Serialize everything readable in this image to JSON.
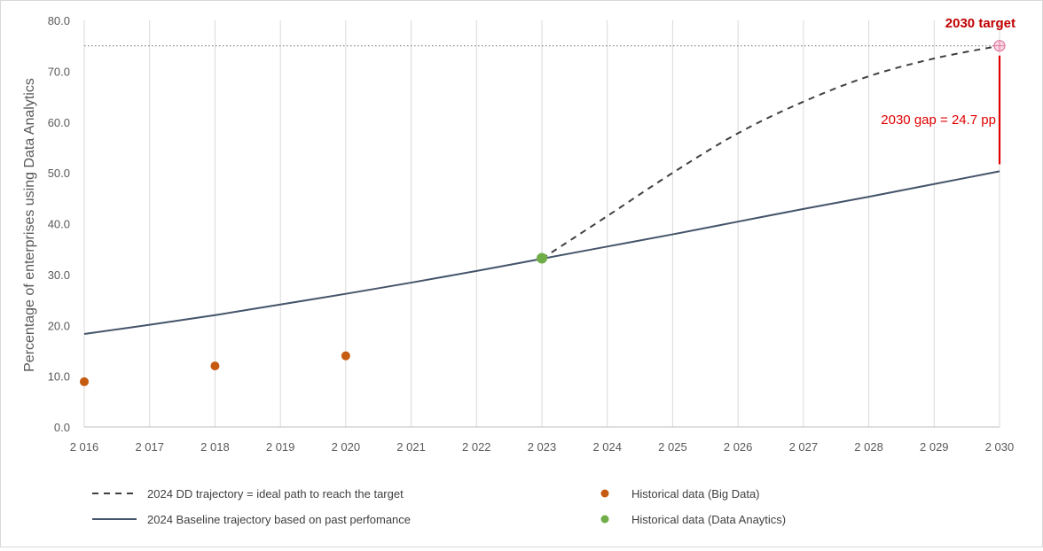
{
  "chart_data": {
    "type": "line",
    "title": "",
    "xlabel": "",
    "ylabel": "Percentage of enterprises using Data Analytics",
    "ylim": [
      0,
      80
    ],
    "xlim": [
      2016,
      2030
    ],
    "grid": "vertical",
    "x_tick_labels": [
      "2 016",
      "2 017",
      "2 018",
      "2 019",
      "2 020",
      "2 021",
      "2 022",
      "2 023",
      "2 024",
      "2 025",
      "2 026",
      "2 027",
      "2 028",
      "2 029",
      "2 030"
    ],
    "y_tick_labels": [
      "0.0",
      "10.0",
      "20.0",
      "30.0",
      "40.0",
      "50.0",
      "60.0",
      "70.0",
      "80.0"
    ],
    "x_ticks": [
      2016,
      2017,
      2018,
      2019,
      2020,
      2021,
      2022,
      2023,
      2024,
      2025,
      2026,
      2027,
      2028,
      2029,
      2030
    ],
    "y_ticks": [
      0,
      10,
      20,
      30,
      40,
      50,
      60,
      70,
      80
    ],
    "series": [
      {
        "name": "2024 Baseline trajectory based on past perfomance",
        "style": "solid",
        "color": "#44546a",
        "x": [
          2016,
          2017,
          2018,
          2019,
          2020,
          2021,
          2022,
          2023,
          2024,
          2025,
          2026,
          2027,
          2028,
          2029,
          2030
        ],
        "values": [
          18.3,
          20.1,
          22.0,
          24.1,
          26.2,
          28.4,
          30.7,
          33.1,
          35.5,
          37.9,
          40.4,
          42.9,
          45.3,
          47.8,
          50.3
        ]
      },
      {
        "name": "2024 DD trajectory = ideal path to reach the target",
        "style": "dashed",
        "color": "#404040",
        "x": [
          2023,
          2024,
          2025,
          2026,
          2027,
          2028,
          2029,
          2030
        ],
        "values": [
          33.1,
          41.5,
          50.0,
          57.8,
          64.0,
          69.0,
          72.5,
          75.0
        ]
      },
      {
        "name": "Historical data (Big Data)",
        "style": "markers",
        "color": "#c55a11",
        "x": [
          2016,
          2018,
          2020
        ],
        "values": [
          8.9,
          12.0,
          14.0
        ]
      },
      {
        "name": "Historical data (Data Anaytics)",
        "style": "markers",
        "color": "#70ad47",
        "x": [
          2023
        ],
        "values": [
          33.2
        ]
      }
    ],
    "target": {
      "label": "2030 target",
      "x": 2030,
      "value": 75.0,
      "color": "#c00000",
      "line_style": "dotted"
    },
    "gap": {
      "label": "2030 gap = 24.7 pp",
      "x": 2030,
      "from": 50.3,
      "to": 75.0,
      "color": "#e00000"
    },
    "legend_position": "bottom"
  }
}
